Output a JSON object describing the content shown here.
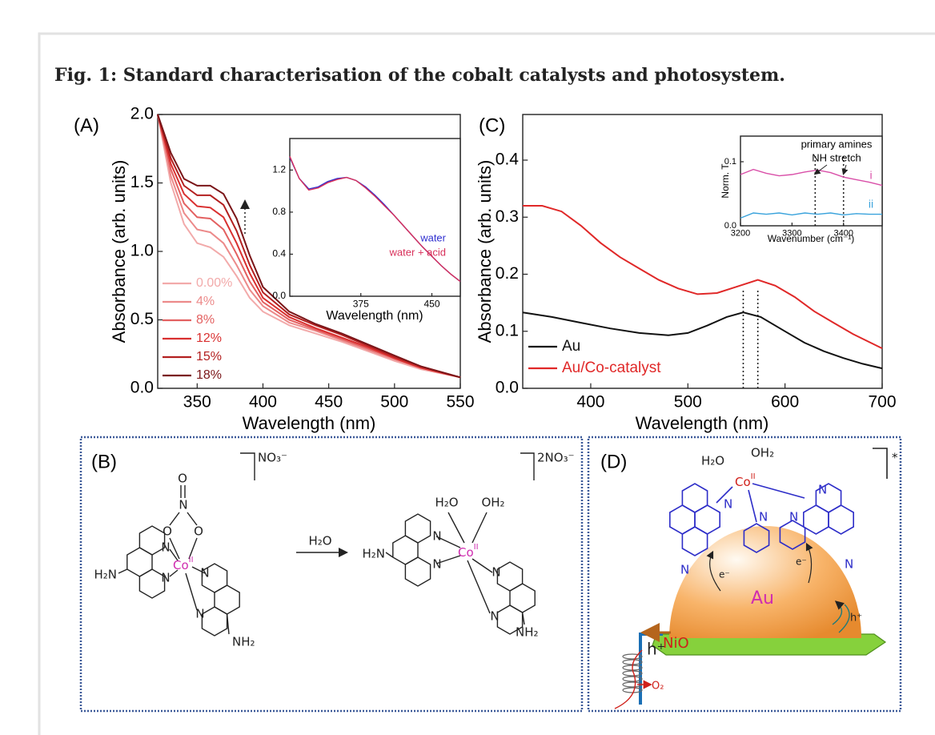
{
  "caption": "Fig. 1: Standard characterisation of the cobalt catalysts and photosystem.",
  "chart_data": [
    {
      "type": "line",
      "panel_label": "(A)",
      "xlabel": "Wavelength (nm)",
      "ylabel": "Absorbance (arb. units)",
      "xlim": [
        320,
        550
      ],
      "ylim": [
        0,
        2
      ],
      "xticks": [
        350,
        400,
        450,
        500,
        550
      ],
      "yticks": [
        {
          "value": 0,
          "label": "0.0"
        },
        0.5,
        {
          "value": 1,
          "label": "1.0"
        },
        1.5,
        {
          "value": 2,
          "label": "2.0"
        }
      ],
      "legend": "lower left",
      "x": [
        320,
        330,
        340,
        350,
        360,
        370,
        380,
        390,
        400,
        420,
        440,
        460,
        480,
        500,
        520,
        550
      ],
      "series": [
        {
          "name": "0.00%",
          "color": "#f2aaaa",
          "values": [
            2.0,
            1.5,
            1.2,
            1.06,
            1.03,
            0.96,
            0.82,
            0.66,
            0.56,
            0.46,
            0.4,
            0.34,
            0.27,
            0.2,
            0.14,
            0.08
          ]
        },
        {
          "name": "4%",
          "color": "#ec8a8a",
          "values": [
            2.0,
            1.55,
            1.28,
            1.16,
            1.14,
            1.06,
            0.9,
            0.72,
            0.6,
            0.48,
            0.42,
            0.35,
            0.28,
            0.21,
            0.15,
            0.08
          ]
        },
        {
          "name": "8%",
          "color": "#e36060",
          "values": [
            2.0,
            1.6,
            1.35,
            1.25,
            1.24,
            1.16,
            0.98,
            0.78,
            0.63,
            0.5,
            0.43,
            0.36,
            0.29,
            0.22,
            0.15,
            0.08
          ]
        },
        {
          "name": "12%",
          "color": "#d93030",
          "values": [
            2.0,
            1.64,
            1.42,
            1.33,
            1.32,
            1.25,
            1.06,
            0.84,
            0.66,
            0.52,
            0.44,
            0.37,
            0.3,
            0.22,
            0.15,
            0.08
          ]
        },
        {
          "name": "15%",
          "color": "#b32020",
          "values": [
            2.0,
            1.68,
            1.48,
            1.41,
            1.41,
            1.34,
            1.15,
            0.9,
            0.7,
            0.54,
            0.46,
            0.39,
            0.31,
            0.23,
            0.16,
            0.08
          ]
        },
        {
          "name": "18%",
          "color": "#7a1518",
          "values": [
            2.0,
            1.72,
            1.53,
            1.48,
            1.48,
            1.42,
            1.24,
            0.97,
            0.74,
            0.56,
            0.47,
            0.4,
            0.32,
            0.24,
            0.16,
            0.08
          ]
        }
      ]
    },
    {
      "type": "line",
      "xlabel": "Wavelength (nm)",
      "xlim": [
        300,
        480
      ],
      "ylim": [
        0,
        1.5
      ],
      "xticks": [
        375,
        450
      ],
      "yticks": [
        {
          "value": 0,
          "label": "0.0"
        },
        0.4,
        0.8,
        1.2
      ],
      "legend": "lower right",
      "x": [
        300,
        310,
        320,
        330,
        340,
        350,
        360,
        370,
        380,
        390,
        400,
        410,
        420,
        430,
        440,
        450,
        460,
        470,
        480
      ],
      "series": [
        {
          "name": "water",
          "color": "#3030d0",
          "values": [
            1.32,
            1.12,
            1.02,
            1.04,
            1.09,
            1.12,
            1.13,
            1.1,
            1.04,
            0.96,
            0.87,
            0.77,
            0.67,
            0.57,
            0.47,
            0.38,
            0.29,
            0.21,
            0.14
          ]
        },
        {
          "name": "water + acid",
          "color": "#d8305a",
          "values": [
            1.33,
            1.12,
            1.01,
            1.03,
            1.08,
            1.11,
            1.13,
            1.1,
            1.03,
            0.95,
            0.86,
            0.77,
            0.67,
            0.57,
            0.47,
            0.38,
            0.29,
            0.21,
            0.14
          ]
        }
      ]
    },
    {
      "type": "line",
      "panel_label": "(C)",
      "xlabel": "Wavelength (nm)",
      "ylabel": "Absorbance (arb. units)",
      "xlim": [
        330,
        700
      ],
      "ylim": [
        0,
        0.48
      ],
      "xticks": [
        400,
        500,
        600,
        700
      ],
      "yticks": [
        {
          "value": 0,
          "label": "0.0"
        },
        0.1,
        0.2,
        0.3,
        0.4
      ],
      "legend": "lower left",
      "vlines": [
        557,
        572
      ],
      "series": [
        {
          "name": "Au",
          "color": "#111111",
          "x": [
            330,
            360,
            390,
            420,
            450,
            480,
            500,
            520,
            540,
            557,
            575,
            600,
            620,
            640,
            660,
            680,
            700
          ],
          "values": [
            0.133,
            0.125,
            0.115,
            0.105,
            0.097,
            0.093,
            0.097,
            0.11,
            0.125,
            0.133,
            0.125,
            0.1,
            0.08,
            0.065,
            0.053,
            0.043,
            0.035
          ]
        },
        {
          "name": "Au/Co-catalyst",
          "color": "#e02828",
          "x": [
            330,
            350,
            370,
            390,
            410,
            430,
            450,
            470,
            490,
            510,
            530,
            550,
            572,
            590,
            610,
            630,
            650,
            670,
            700
          ],
          "values": [
            0.32,
            0.32,
            0.31,
            0.285,
            0.255,
            0.23,
            0.21,
            0.19,
            0.175,
            0.165,
            0.167,
            0.178,
            0.19,
            0.18,
            0.16,
            0.135,
            0.115,
            0.095,
            0.07
          ]
        }
      ]
    },
    {
      "type": "line",
      "xlabel": "Wavenumber (cm⁻¹)",
      "ylabel": "Norm. T",
      "xlim": [
        3200,
        3475
      ],
      "ylim": [
        0,
        0.14
      ],
      "xticks": [
        3200,
        3300,
        3400
      ],
      "yticks": [
        {
          "value": 0,
          "label": "0.0"
        },
        0.1
      ],
      "legend": "inline",
      "annotations": [
        "primary amines",
        "NH stretch"
      ],
      "vlines": [
        3345,
        3400
      ],
      "x": [
        3200,
        3225,
        3250,
        3275,
        3300,
        3325,
        3350,
        3375,
        3400,
        3425,
        3450,
        3475
      ],
      "series": [
        {
          "name": "i",
          "color": "#d94fa8",
          "values": [
            0.08,
            0.088,
            0.082,
            0.078,
            0.08,
            0.084,
            0.087,
            0.083,
            0.076,
            0.072,
            0.068,
            0.063
          ]
        },
        {
          "name": "ii",
          "color": "#3aa3dc",
          "values": [
            0.012,
            0.02,
            0.018,
            0.02,
            0.017,
            0.02,
            0.018,
            0.02,
            0.017,
            0.019,
            0.018,
            0.018
          ]
        }
      ]
    }
  ],
  "panel_b": {
    "label": "(B)",
    "reagent": "H₂O",
    "complex_1": {
      "metal": "Co",
      "oxidation_state": "II",
      "counter_ion": "NO₃⁻",
      "amines": [
        "H₂N",
        "NH₂"
      ],
      "nitrogens": [
        "N",
        "N",
        "N",
        "N"
      ],
      "nitrate": [
        "O",
        "N",
        "O",
        "O"
      ]
    },
    "complex_2": {
      "metal": "Co",
      "oxidation_state": "II",
      "counter_ion": "2NO₃⁻",
      "aqua": [
        "H₂O",
        "OH₂"
      ],
      "amines": [
        "H₂N",
        "NH₂"
      ],
      "nitrogens": [
        "N",
        "N",
        "N",
        "N"
      ]
    }
  },
  "panel_d": {
    "label": "(D)",
    "metal": "Co",
    "oxidation_state": "II",
    "aqua": [
      "H₂O",
      "OH₂"
    ],
    "excited": "*",
    "nitrogens": [
      "N",
      "N",
      "N",
      "N",
      "N",
      "N"
    ],
    "electrons": [
      "e⁻",
      "e⁻"
    ],
    "particle": "Au",
    "support": "NiO",
    "holes": [
      "h⁺",
      "h⁺"
    ],
    "product": "O₂"
  }
}
